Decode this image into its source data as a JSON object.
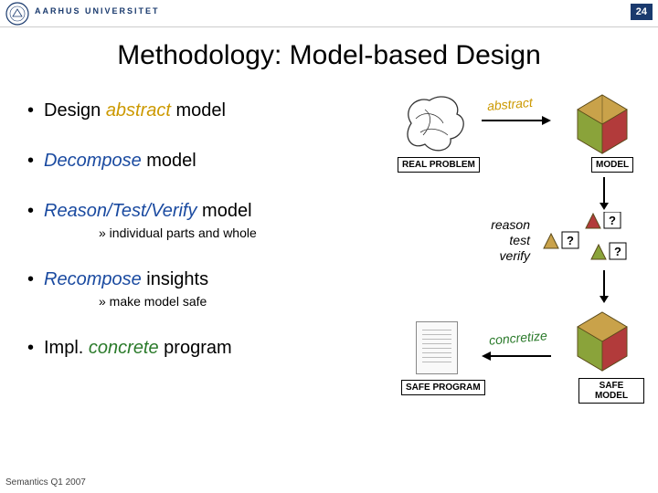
{
  "header": {
    "university": "AARHUS UNIVERSITET",
    "page_number": "24",
    "seal_color": "#1a3a6e"
  },
  "title": "Methodology: Model-based Design",
  "bullets": [
    {
      "pre": "Design ",
      "em": "abstract",
      "em_color": "#cc9900",
      "post": " model",
      "sub": ""
    },
    {
      "pre": "",
      "em": "Decompose",
      "em_color": "#1a4aa0",
      "post": " model",
      "sub": ""
    },
    {
      "pre": "",
      "em": "Reason/Test/Verify",
      "em_color": "#1a4aa0",
      "post": " model",
      "sub": "» individual parts and whole"
    },
    {
      "pre": "",
      "em": "Recompose",
      "em_color": "#1a4aa0",
      "post": " insights",
      "sub": "» make model safe"
    },
    {
      "pre": "Impl. ",
      "em": "concrete",
      "em_color": "#2a7a2a",
      "post": " program",
      "sub": ""
    }
  ],
  "diagram": {
    "labels": {
      "real_problem": "REAL PROBLEM",
      "model": "MODEL",
      "safe_model": "SAFE MODEL",
      "safe_program": "SAFE PROGRAM"
    },
    "transitions": {
      "abstract": {
        "text": "abstract",
        "color": "#cc9900",
        "direction": "right"
      },
      "concretize": {
        "text": "concretize",
        "color": "#2a7a2a",
        "direction": "left"
      }
    },
    "rtv": [
      "reason",
      "test",
      "verify"
    ],
    "scribble_color": "#333333",
    "polyhedron_colors": {
      "top": "#c9a24a",
      "left": "#8aa33a",
      "right": "#b23b3b"
    },
    "triangle_colors": [
      "#c9a24a",
      "#b23b3b",
      "#8aa33a"
    ],
    "arrow_color": "#000000",
    "q_mark": "?"
  },
  "footer": "Semantics Q1 2007"
}
